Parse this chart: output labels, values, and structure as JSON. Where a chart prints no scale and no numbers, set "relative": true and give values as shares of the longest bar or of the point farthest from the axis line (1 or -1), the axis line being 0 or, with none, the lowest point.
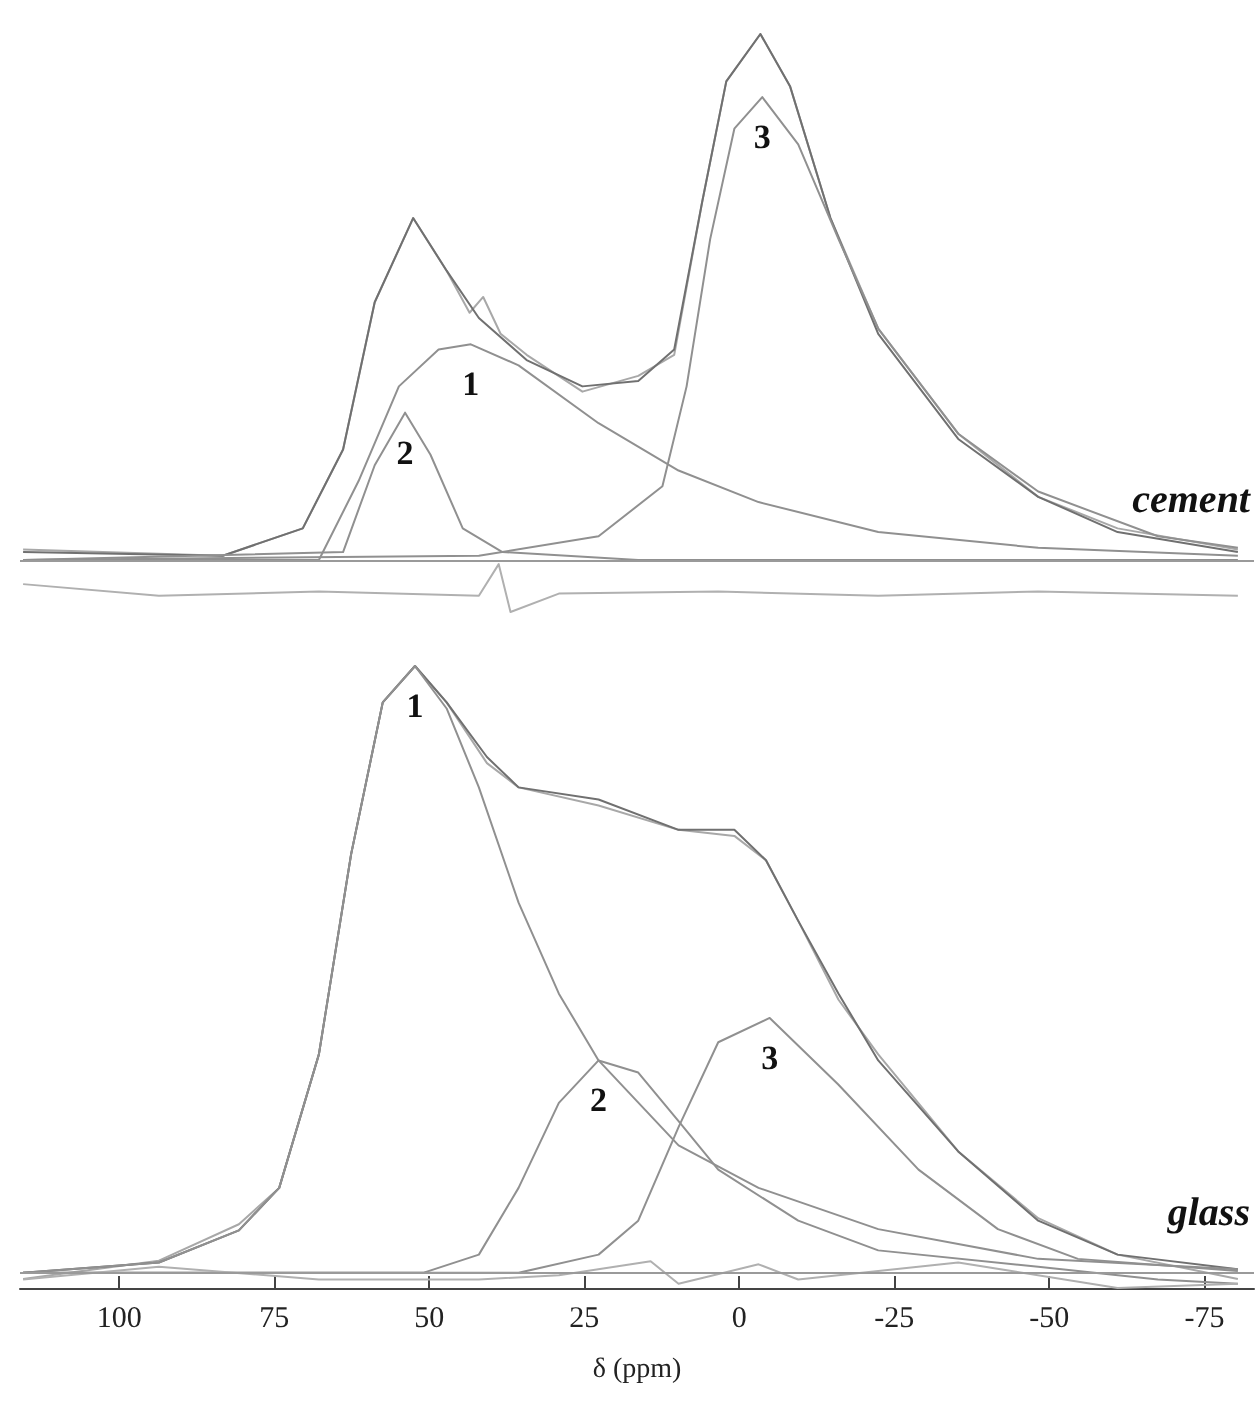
{
  "chart_data": [
    {
      "type": "line",
      "relative": true,
      "xlim": [
        116,
        -83
      ],
      "tick_labels": false,
      "legend": false,
      "marker": "none",
      "ref_lines": [
        {
          "axis": "y",
          "value": 0,
          "color": "#9a9a9a"
        }
      ],
      "annotations": [
        "cement"
      ],
      "series": [
        {
          "color": "#a8a8a8",
          "x": [
            115.5,
            83.3,
            70.4,
            63.9,
            58.8,
            52.6,
            47.2,
            43.5,
            41.3,
            38.5,
            34.3,
            25.3,
            16.3,
            10.5,
            6.0,
            2.1,
            -3.4,
            -8.2,
            -14.7,
            -22.4,
            -35.3,
            -48.2,
            -61.0,
            -80.4
          ],
          "values": [
            0.02,
            0.008,
            0.06,
            0.21,
            0.49,
            0.65,
            0.55,
            0.47,
            0.5,
            0.43,
            0.39,
            0.32,
            0.35,
            0.39,
            0.68,
            0.91,
            1.0,
            0.9,
            0.65,
            0.44,
            0.24,
            0.12,
            0.06,
            0.02
          ]
        },
        {
          "color": "#707070",
          "x": [
            115.5,
            83.3,
            70.4,
            63.9,
            58.8,
            52.6,
            47.2,
            42.0,
            34.3,
            25.3,
            16.3,
            10.5,
            6.0,
            2.1,
            -3.4,
            -8.2,
            -14.7,
            -22.4,
            -35.3,
            -48.2,
            -61.0,
            -80.4
          ],
          "values": [
            0.015,
            0.008,
            0.06,
            0.21,
            0.49,
            0.65,
            0.55,
            0.46,
            0.38,
            0.33,
            0.34,
            0.4,
            0.68,
            0.91,
            1.0,
            0.9,
            0.65,
            0.43,
            0.23,
            0.12,
            0.053,
            0.015
          ]
        },
        {
          "name": "1",
          "color": "#909090",
          "x": [
            115.5,
            67.8,
            61.4,
            54.9,
            48.5,
            43.3,
            35.6,
            22.7,
            9.8,
            -3.1,
            -22.4,
            -48.2,
            -80.4
          ],
          "values": [
            0,
            0,
            0.15,
            0.33,
            0.4,
            0.41,
            0.37,
            0.26,
            0.17,
            0.11,
            0.053,
            0.023,
            0.008
          ]
        },
        {
          "name": "2",
          "color": "#909090",
          "x": [
            115.5,
            63.9,
            58.8,
            53.9,
            49.8,
            44.6,
            38.2,
            16.3,
            -80.4
          ],
          "values": [
            0,
            0.015,
            0.18,
            0.28,
            0.2,
            0.06,
            0.015,
            0,
            0
          ]
        },
        {
          "name": "3",
          "color": "#909090",
          "x": [
            115.5,
            42.0,
            22.7,
            12.4,
            8.5,
            4.7,
            0.8,
            -3.7,
            -9.5,
            -16.0,
            -22.4,
            -35.3,
            -48.2,
            -67.5,
            -80.4
          ],
          "values": [
            0,
            0.008,
            0.045,
            0.14,
            0.33,
            0.61,
            0.82,
            0.88,
            0.79,
            0.61,
            0.44,
            0.24,
            0.13,
            0.045,
            0.023
          ]
        },
        {
          "color": "#b0b0b0",
          "x": [
            115.5,
            93.6,
            67.8,
            42.0,
            38.8,
            36.9,
            29.1,
            3.4,
            -22.4,
            -48.2,
            -80.4
          ],
          "values": [
            -0.046,
            -0.068,
            -0.06,
            -0.068,
            -0.008,
            -0.099,
            -0.064,
            -0.06,
            -0.068,
            -0.06,
            -0.068
          ]
        }
      ]
    },
    {
      "type": "line",
      "relative": true,
      "xlim": [
        116,
        -83
      ],
      "xticks": [
        100,
        75,
        50,
        25,
        0,
        -25,
        -50,
        -75
      ],
      "xlabel": "δ (ppm)",
      "legend": false,
      "marker": "none",
      "ref_lines": [
        {
          "axis": "y",
          "value": 0,
          "color": "#9a9a9a"
        }
      ],
      "annotations": [
        "glass"
      ],
      "series": [
        {
          "color": "#a8a8a8",
          "x": [
            115.5,
            93.6,
            80.7,
            74.2,
            67.8,
            62.6,
            57.5,
            52.3,
            47.2,
            40.7,
            35.6,
            22.7,
            9.8,
            0.8,
            -4.3,
            -9.5,
            -16.0,
            -22.4,
            -35.3,
            -48.2,
            -61.0,
            -80.4
          ],
          "values": [
            -0.01,
            0.02,
            0.08,
            0.14,
            0.36,
            0.69,
            0.94,
            1.0,
            0.94,
            0.84,
            0.8,
            0.77,
            0.73,
            0.72,
            0.68,
            0.58,
            0.45,
            0.36,
            0.2,
            0.09,
            0.03,
            -0.01
          ]
        },
        {
          "color": "#707070",
          "x": [
            115.5,
            93.6,
            80.7,
            74.2,
            67.8,
            62.6,
            57.5,
            52.3,
            47.2,
            40.7,
            35.6,
            22.7,
            9.8,
            0.8,
            -4.3,
            -9.5,
            -16.0,
            -22.4,
            -35.3,
            -48.2,
            -61.0,
            -80.4
          ],
          "values": [
            0,
            0.017,
            0.07,
            0.14,
            0.36,
            0.69,
            0.94,
            1.0,
            0.94,
            0.85,
            0.8,
            0.78,
            0.73,
            0.73,
            0.68,
            0.58,
            0.46,
            0.35,
            0.2,
            0.086,
            0.03,
            0.006
          ]
        },
        {
          "name": "1",
          "color": "#909090",
          "x": [
            115.5,
            93.6,
            80.7,
            74.2,
            67.8,
            62.6,
            57.5,
            52.3,
            47.2,
            42.0,
            35.6,
            29.1,
            22.7,
            9.8,
            -3.1,
            -22.4,
            -48.2,
            -80.4
          ],
          "values": [
            0,
            0.017,
            0.07,
            0.14,
            0.36,
            0.69,
            0.94,
            1.0,
            0.93,
            0.8,
            0.61,
            0.46,
            0.35,
            0.21,
            0.14,
            0.072,
            0.023,
            0.006
          ]
        },
        {
          "name": "2",
          "color": "#909090",
          "x": [
            115.5,
            51.0,
            42.0,
            35.6,
            29.1,
            22.7,
            16.3,
            9.8,
            3.4,
            -9.5,
            -22.4,
            -48.2,
            -67.5,
            -80.4
          ],
          "values": [
            0,
            0,
            0.03,
            0.14,
            0.28,
            0.35,
            0.33,
            0.25,
            0.17,
            0.086,
            0.037,
            0.01,
            -0.011,
            -0.018
          ]
        },
        {
          "name": "3",
          "color": "#909090",
          "x": [
            115.5,
            35.6,
            22.7,
            16.3,
            9.8,
            3.4,
            -4.9,
            -16.0,
            -28.9,
            -41.7,
            -54.6,
            -80.4
          ],
          "values": [
            0,
            0,
            0.03,
            0.086,
            0.24,
            0.38,
            0.42,
            0.31,
            0.17,
            0.072,
            0.023,
            0.003
          ]
        },
        {
          "color": "#b0b0b0",
          "x": [
            115.5,
            93.6,
            67.8,
            42.0,
            29.1,
            14.3,
            9.8,
            -3.1,
            -9.5,
            -35.3,
            -61.0,
            -80.4
          ],
          "values": [
            -0.011,
            0.01,
            -0.011,
            -0.011,
            -0.004,
            0.019,
            -0.018,
            0.014,
            -0.011,
            0.017,
            -0.025,
            -0.018
          ]
        }
      ]
    }
  ]
}
